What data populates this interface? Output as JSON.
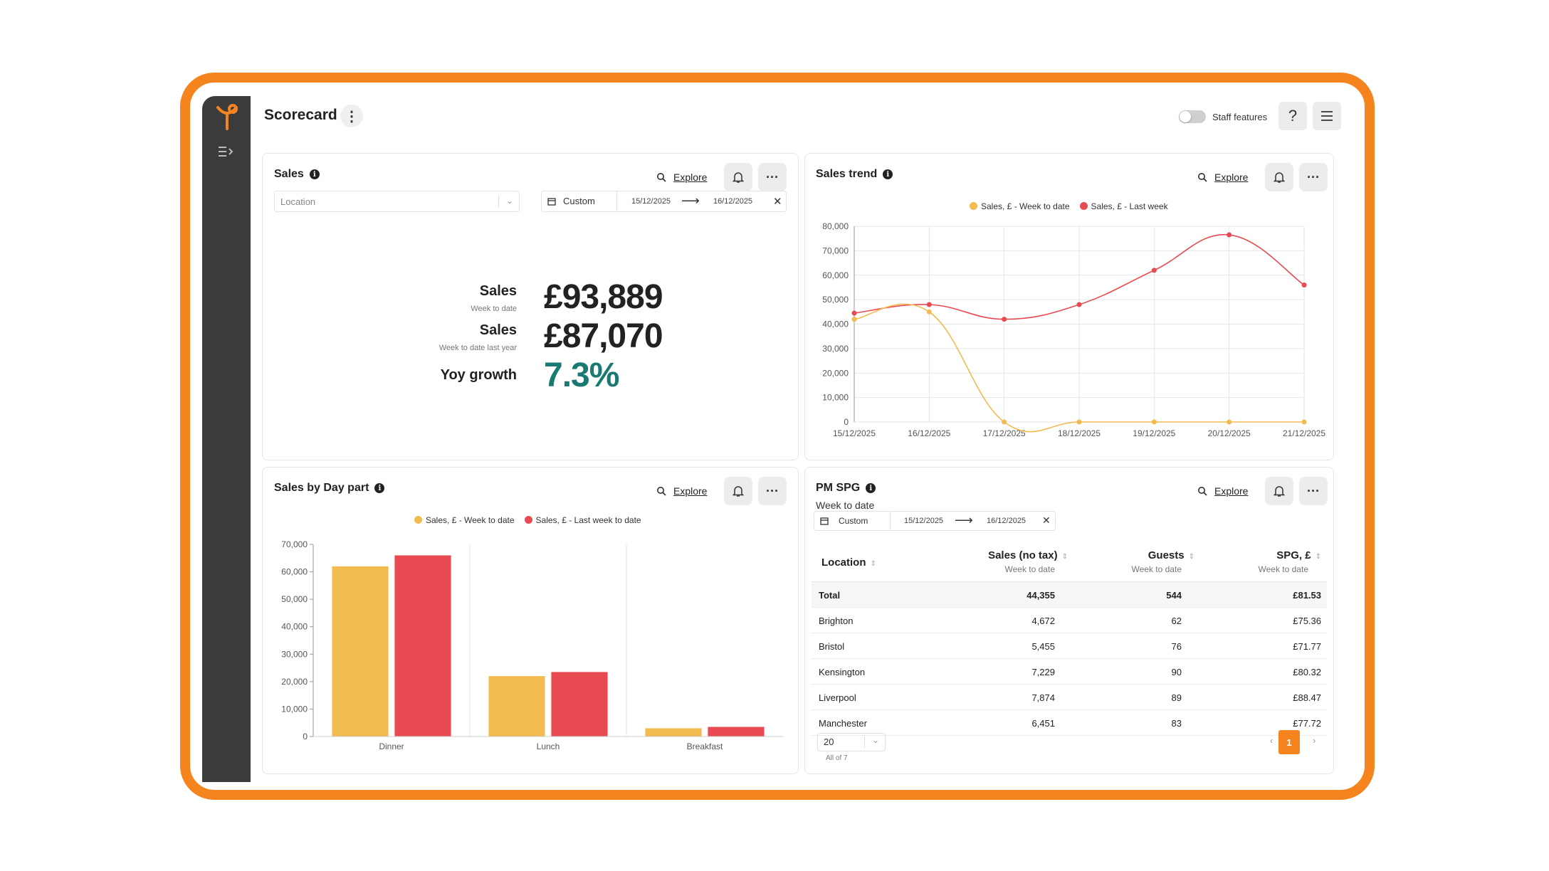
{
  "app": {
    "title": "Scorecard",
    "staff_features_label": "Staff features",
    "help_label": "?"
  },
  "sales_card": {
    "title": "Sales",
    "explore_label": "Explore",
    "location_placeholder": "Location",
    "date_mode": "Custom",
    "date_from": "15/12/2025",
    "date_to": "16/12/2025",
    "metrics": [
      {
        "label": "Sales",
        "sublabel": "Week to date",
        "value": "£93,889"
      },
      {
        "label": "Sales",
        "sublabel": "Week to date last year",
        "value": "£87,070"
      },
      {
        "label": "Yoy growth",
        "sublabel": "",
        "value": "7.3%"
      }
    ],
    "growth_color": "#1a7a72"
  },
  "trend_card": {
    "title": "Sales trend",
    "explore_label": "Explore",
    "legend": [
      "Sales, £ - Week to date",
      "Sales, £ - Last week"
    ]
  },
  "daypart_card": {
    "title": "Sales by Day part",
    "explore_label": "Explore",
    "legend": [
      "Sales, £ - Week to date",
      "Sales, £ - Last week to date"
    ]
  },
  "spg_card": {
    "title": "PM SPG",
    "subtitle": "Week to date",
    "explore_label": "Explore",
    "date_mode": "Custom",
    "date_from": "15/12/2025",
    "date_to": "16/12/2025",
    "columns": [
      {
        "label": "Location",
        "sub": ""
      },
      {
        "label": "Sales (no tax)",
        "sub": "Week to date"
      },
      {
        "label": "Guests",
        "sub": "Week to date"
      },
      {
        "label": "SPG, £",
        "sub": "Week to date"
      }
    ],
    "rows": [
      [
        "Total",
        "44,355",
        "544",
        "£81.53"
      ],
      [
        "Brighton",
        "4,672",
        "62",
        "£75.36"
      ],
      [
        "Bristol",
        "5,455",
        "76",
        "£71.77"
      ],
      [
        "Kensington",
        "7,229",
        "90",
        "£80.32"
      ],
      [
        "Liverpool",
        "7,874",
        "89",
        "£88.47"
      ],
      [
        "Manchester",
        "6,451",
        "83",
        "£77.72"
      ]
    ],
    "page_size": "20",
    "page_note": "All of 7",
    "current_page": "1"
  },
  "colors": {
    "accent": "#f5841f",
    "series_current": "#f2bb4f",
    "series_last": "#e84a52",
    "sidebar": "#3b3b3b"
  },
  "chart_data": [
    {
      "type": "line",
      "x": [
        "15/12/2025",
        "16/12/2025",
        "17/12/2025",
        "18/12/2025",
        "19/12/2025",
        "20/12/2025",
        "21/12/2025"
      ],
      "series": [
        {
          "name": "Sales, £ - Week to date",
          "values": [
            42000,
            45000,
            0,
            0,
            0,
            0,
            0
          ]
        },
        {
          "name": "Sales, £ - Last week",
          "values": [
            44500,
            48000,
            42000,
            48000,
            62000,
            76500,
            56000
          ]
        }
      ],
      "ylim": [
        0,
        80000
      ],
      "yticks": [
        "0",
        "10,000",
        "20,000",
        "30,000",
        "40,000",
        "50,000",
        "60,000",
        "70,000",
        "80,000"
      ]
    },
    {
      "type": "bar",
      "categories": [
        "Dinner",
        "Lunch",
        "Breakfast"
      ],
      "series": [
        {
          "name": "Sales, £ - Week to date",
          "values": [
            62000,
            22000,
            3000
          ]
        },
        {
          "name": "Sales, £ - Last week to date",
          "values": [
            66000,
            23500,
            3500
          ]
        }
      ],
      "ylim": [
        0,
        70000
      ],
      "yticks": [
        "0",
        "10,000",
        "20,000",
        "30,000",
        "40,000",
        "50,000",
        "60,000",
        "70,000"
      ]
    }
  ]
}
